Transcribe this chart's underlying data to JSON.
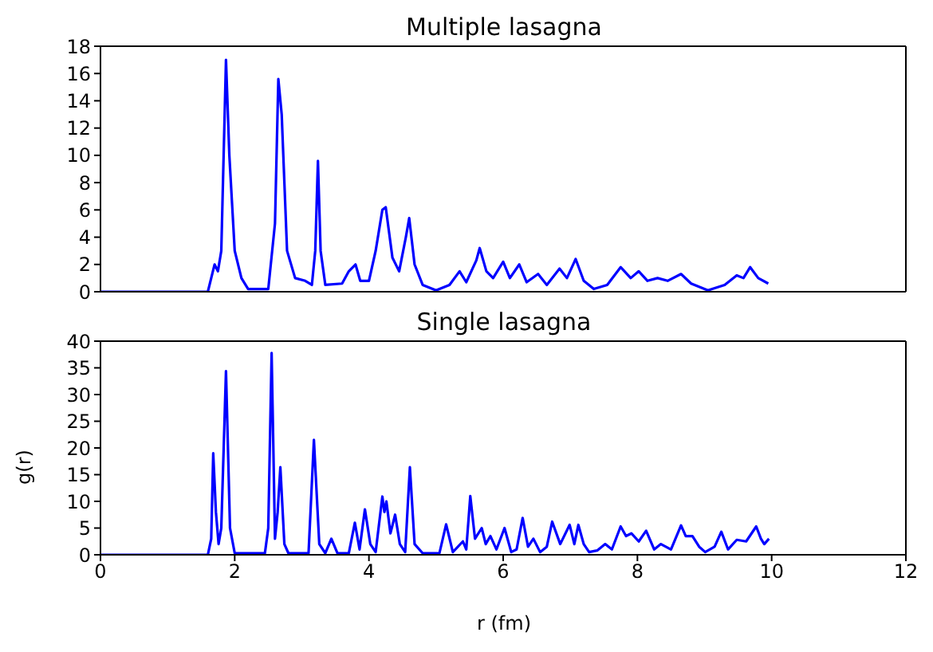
{
  "chart_data": [
    {
      "type": "line",
      "title": "Multiple lasagna",
      "xlim": [
        0,
        12
      ],
      "xticks": [
        0,
        2,
        4,
        6,
        8,
        10,
        12
      ],
      "ylim": [
        0,
        18
      ],
      "yticks": [
        0,
        2,
        4,
        6,
        8,
        10,
        12,
        14,
        16,
        18
      ],
      "tick_labels": "y",
      "marker": "none",
      "line_style": "solid",
      "series": [
        {
          "color": "#0000ff",
          "x": [
            0,
            1.6,
            1.65,
            1.7,
            1.75,
            1.8,
            1.87,
            1.92,
            2.0,
            2.1,
            2.2,
            2.5,
            2.6,
            2.65,
            2.7,
            2.78,
            2.9,
            3.05,
            3.15,
            3.2,
            3.24,
            3.28,
            3.35,
            3.6,
            3.7,
            3.8,
            3.87,
            4.0,
            4.1,
            4.2,
            4.25,
            4.35,
            4.45,
            4.55,
            4.6,
            4.68,
            4.8,
            5.0,
            5.2,
            5.35,
            5.45,
            5.6,
            5.65,
            5.75,
            5.85,
            6.0,
            6.1,
            6.24,
            6.35,
            6.52,
            6.65,
            6.84,
            6.95,
            7.08,
            7.2,
            7.35,
            7.55,
            7.75,
            7.9,
            8.02,
            8.15,
            8.3,
            8.45,
            8.65,
            8.8,
            9.05,
            9.3,
            9.48,
            9.58,
            9.68,
            9.8,
            9.95
          ],
          "values": [
            0,
            0,
            1,
            2,
            1.5,
            3,
            17,
            10,
            3,
            1,
            0.2,
            0.2,
            5,
            15.6,
            13,
            3,
            1,
            0.8,
            0.5,
            3,
            9.6,
            3,
            0.5,
            0.6,
            1.5,
            2,
            0.8,
            0.8,
            3,
            6,
            6.2,
            2.5,
            1.5,
            4,
            5.4,
            2,
            0.5,
            0.1,
            0.5,
            1.5,
            0.7,
            2.3,
            3.2,
            1.5,
            1,
            2.2,
            1,
            2,
            0.7,
            1.3,
            0.5,
            1.7,
            1,
            2.4,
            0.8,
            0.2,
            0.5,
            1.8,
            1,
            1.5,
            0.8,
            1,
            0.8,
            1.3,
            0.6,
            0.1,
            0.5,
            1.2,
            1,
            1.8,
            1,
            0.6
          ]
        }
      ]
    },
    {
      "type": "line",
      "title": "Single lasagna",
      "xlabel": "r (fm)",
      "ylabel": "g(r)",
      "xlim": [
        0,
        12
      ],
      "xticks": [
        0,
        2,
        4,
        6,
        8,
        10,
        12
      ],
      "ylim": [
        0,
        40
      ],
      "yticks": [
        0,
        5,
        10,
        15,
        20,
        25,
        30,
        35,
        40
      ],
      "marker": "none",
      "line_style": "solid",
      "series": [
        {
          "color": "#0000ff",
          "x": [
            0,
            1.6,
            1.65,
            1.68,
            1.72,
            1.76,
            1.8,
            1.87,
            1.93,
            2.0,
            2.45,
            2.5,
            2.55,
            2.6,
            2.64,
            2.68,
            2.74,
            2.8,
            3.1,
            3.18,
            3.26,
            3.35,
            3.44,
            3.53,
            3.7,
            3.79,
            3.86,
            3.94,
            4.02,
            4.1,
            4.2,
            4.23,
            4.26,
            4.32,
            4.39,
            4.46,
            4.54,
            4.61,
            4.68,
            4.8,
            5.05,
            5.15,
            5.25,
            5.4,
            5.45,
            5.51,
            5.58,
            5.68,
            5.74,
            5.81,
            5.9,
            6.02,
            6.12,
            6.2,
            6.29,
            6.37,
            6.45,
            6.55,
            6.65,
            6.73,
            6.85,
            6.99,
            7.06,
            7.12,
            7.2,
            7.28,
            7.4,
            7.52,
            7.62,
            7.75,
            7.83,
            7.91,
            8.02,
            8.13,
            8.25,
            8.35,
            8.5,
            8.65,
            8.72,
            8.82,
            8.92,
            9.01,
            9.15,
            9.25,
            9.35,
            9.48,
            9.62,
            9.77,
            9.84,
            9.89,
            9.96
          ],
          "values": [
            0,
            0,
            3,
            19,
            8,
            2,
            5,
            34.4,
            5,
            0.3,
            0.3,
            5,
            37.8,
            3,
            8,
            16.4,
            2,
            0.3,
            0.3,
            21.5,
            2,
            0.3,
            3,
            0.3,
            0.3,
            6,
            1,
            8.5,
            2,
            0.5,
            10.9,
            8,
            10,
            4,
            7.5,
            2,
            0.5,
            16.4,
            2,
            0.3,
            0.3,
            5.7,
            0.5,
            2.5,
            1,
            11,
            3,
            5,
            2,
            3.5,
            1,
            5,
            0.5,
            1,
            6.9,
            1.5,
            3,
            0.5,
            1.5,
            6.2,
            2,
            5.6,
            2,
            5.6,
            2,
            0.5,
            0.8,
            2,
            1,
            5.3,
            3.5,
            4,
            2.5,
            4.5,
            1,
            2,
            1,
            5.5,
            3.5,
            3.5,
            1.5,
            0.5,
            1.5,
            4.3,
            1,
            2.8,
            2.5,
            5.3,
            3,
            2,
            3
          ]
        }
      ]
    }
  ]
}
